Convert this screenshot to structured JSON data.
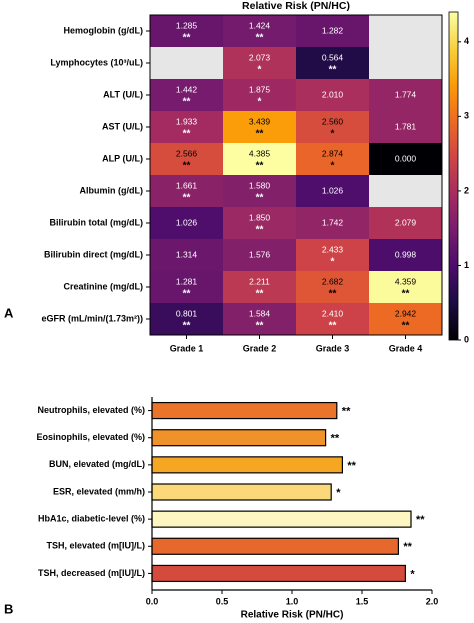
{
  "chart_data": [
    {
      "type": "heatmap",
      "panel": "A",
      "title": "Relative Risk (PN/HC)",
      "rows": [
        "Hemoglobin (g/dL)",
        "Lymphocytes (10³/uL)",
        "ALT (U/L)",
        "AST (U/L)",
        "ALP (U/L)",
        "Albumin (g/dL)",
        "Bilirubin total (mg/dL)",
        "Bilirubin direct (mg/dL)",
        "Creatinine (mg/dL)",
        "eGFR (mL/min/(1.73m²))"
      ],
      "columns": [
        "Grade 1",
        "Grade 2",
        "Grade 3",
        "Grade 4"
      ],
      "values": [
        [
          1.285,
          1.424,
          1.282,
          null
        ],
        [
          null,
          2.073,
          0.564,
          null
        ],
        [
          1.442,
          1.875,
          2.01,
          1.774
        ],
        [
          1.933,
          3.439,
          2.56,
          1.781
        ],
        [
          2.566,
          4.385,
          2.874,
          0
        ],
        [
          1.661,
          1.58,
          1.026,
          null
        ],
        [
          1.026,
          1.85,
          1.742,
          2.079
        ],
        [
          1.314,
          1.576,
          2.433,
          0.998
        ],
        [
          1.281,
          2.211,
          2.682,
          4.359
        ],
        [
          0.801,
          1.584,
          2.41,
          2.942
        ]
      ],
      "value_labels": [
        [
          "1.285",
          "1.424",
          "1.282",
          null
        ],
        [
          null,
          "2.073",
          "0.564",
          null
        ],
        [
          "1.442",
          "1.875",
          "2.010",
          "1.774"
        ],
        [
          "1.933",
          "3.439",
          "2.560",
          "1.781"
        ],
        [
          "2.566",
          "4.385",
          "2.874",
          "0.000"
        ],
        [
          "1.661",
          "1.580",
          "1.026",
          null
        ],
        [
          "1.026",
          "1.850",
          "1.742",
          "2.079"
        ],
        [
          "1.314",
          "1.576",
          "2.433",
          "0.998"
        ],
        [
          "1.281",
          "2.211",
          "2.682",
          "4.359"
        ],
        [
          "0.801",
          "1.584",
          "2.410",
          "2.942"
        ]
      ],
      "significance": [
        [
          "**",
          "**",
          null,
          null
        ],
        [
          null,
          "*",
          "**",
          null
        ],
        [
          "**",
          "*",
          null,
          null
        ],
        [
          "**",
          "**",
          "*",
          null
        ],
        [
          "**",
          "**",
          "*",
          null
        ],
        [
          "**",
          "**",
          null,
          null
        ],
        [
          null,
          "**",
          null,
          null
        ],
        [
          null,
          null,
          "*",
          null
        ],
        [
          "**",
          "**",
          "**",
          "**"
        ],
        [
          "**",
          "**",
          "**",
          "**"
        ]
      ],
      "zlim": [
        0,
        4.4
      ],
      "zticks": [
        0,
        1,
        2,
        3,
        4
      ],
      "colormap": [
        "#000004",
        "#1b0c41",
        "#4a0c6b",
        "#781c6d",
        "#a52c60",
        "#cf4446",
        "#ed6925",
        "#fb9b06",
        "#f7d13d",
        "#fcffa4"
      ],
      "missing_color": "#e6e6e6"
    },
    {
      "type": "barh",
      "panel": "B",
      "categories": [
        "Neutrophils, elevated (%)",
        "Eosinophils, elevated (%)",
        "BUN, elevated (mg/dL)",
        "ESR, elevated (mm/h)",
        "HbA1c, diabetic-level (%)",
        "TSH, elevated (m[IU]/L)",
        "TSH, decreased (m[IU]/L)"
      ],
      "values": [
        1.32,
        1.24,
        1.36,
        1.28,
        1.85,
        1.76,
        1.81
      ],
      "colors": [
        "#e9742a",
        "#f0922a",
        "#f5a623",
        "#fbd97a",
        "#fdf6c0",
        "#e7682c",
        "#d44a3c"
      ],
      "significance": [
        "**",
        "**",
        "**",
        "*",
        "**",
        "**",
        "*"
      ],
      "xlabel": "Relative Risk (PN/HC)",
      "xlim": [
        0,
        2
      ],
      "xticks": [
        {
          "value": 0,
          "label": "0.0"
        },
        {
          "value": 0.5,
          "label": "0.5"
        },
        {
          "value": 1,
          "label": "1.0"
        },
        {
          "value": 1.5,
          "label": "1.5"
        },
        {
          "value": 2,
          "label": "2.0"
        }
      ]
    }
  ]
}
